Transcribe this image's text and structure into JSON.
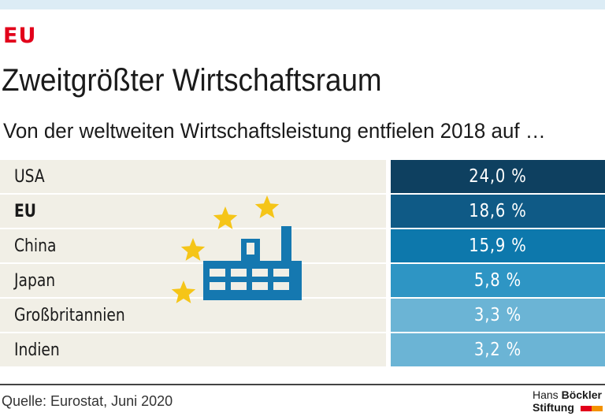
{
  "kicker": "EU",
  "title": "Zweitgrößter Wirtschaftsraum",
  "subtitle": "Von der weltweiten Wirtschaftsleistung entfielen 2018 auf …",
  "chart_data": {
    "type": "table",
    "categories": [
      "USA",
      "EU",
      "China",
      "Japan",
      "Großbritannien",
      "Indien"
    ],
    "values": [
      24.0,
      18.6,
      15.9,
      5.8,
      3.3,
      3.2
    ],
    "value_labels": [
      "24,0 %",
      "18,6 %",
      "15,9 %",
      "5,8 %",
      "3,3 %",
      "3,2 %"
    ],
    "unit": "%",
    "highlight": "EU",
    "colors": [
      "#0e4060",
      "#0f5a86",
      "#0d78ac",
      "#2e95c4",
      "#6bb4d5",
      "#6bb4d5"
    ]
  },
  "icon": "factory-with-eu-stars-icon",
  "colors": {
    "kicker": "#e2001a",
    "label_bg": "#f1efe6",
    "star": "#f5c518",
    "factory": "#1578b0"
  },
  "source": "Quelle: Eurostat, Juni 2020",
  "logo": {
    "line1a": "Hans ",
    "line1b": "Böckler",
    "line2": "Stiftung"
  }
}
